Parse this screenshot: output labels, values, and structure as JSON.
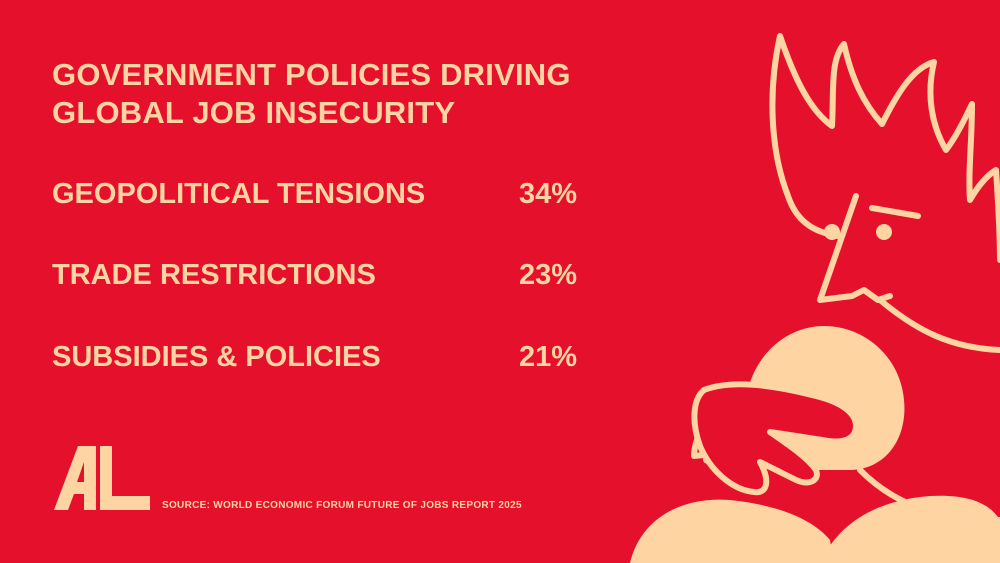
{
  "title": {
    "line1": "GOVERNMENT POLICIES DRIVING",
    "line2": "GLOBAL JOB INSECURITY"
  },
  "stats": [
    {
      "label": "GEOPOLITICAL TENSIONS",
      "value": "34%"
    },
    {
      "label": "TRADE RESTRICTIONS",
      "value": "23%"
    },
    {
      "label": "SUBSIDIES & POLICIES",
      "value": "21%"
    }
  ],
  "source": "SOURCE: WORLD ECONOMIC FORUM FUTURE OF JOBS REPORT 2025",
  "logo_text": "AL",
  "colors": {
    "background": "#E5112C",
    "foreground": "#FFD4A3"
  },
  "icons": {
    "logo": "al-logo-icon",
    "illustration": "burning-head-hugging-figure-icon"
  }
}
